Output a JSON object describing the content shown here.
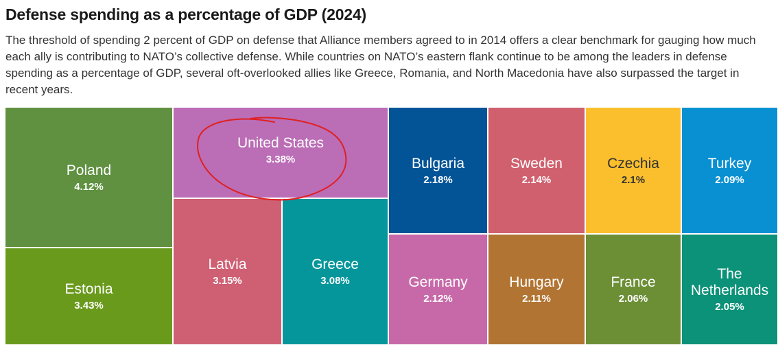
{
  "header": {
    "title": "Defense spending as a percentage of GDP (2024)",
    "subtitle": "The threshold of spending 2 percent of GDP on defense that Alliance members agreed to in 2014 offers a clear benchmark for gauging how much each ally is contributing to NATO’s collective defense. While countries on NATO’s eastern flank continue to be among the leaders in defense spending as a percentage of GDP, several oft-overlooked allies like Greece, Romania, and North Macedonia have also surpassed the target in recent years."
  },
  "chart_data": {
    "type": "treemap",
    "title": "Defense spending as a percentage of GDP (2024)",
    "unit": "percent of GDP",
    "items": [
      {
        "name": "Poland",
        "value": 4.12,
        "label": "4.12%",
        "color": "#5f9140"
      },
      {
        "name": "Estonia",
        "value": 3.43,
        "label": "3.43%",
        "color": "#6a9a1c"
      },
      {
        "name": "United States",
        "value": 3.38,
        "label": "3.38%",
        "color": "#bb6db6"
      },
      {
        "name": "Latvia",
        "value": 3.15,
        "label": "3.15%",
        "color": "#cf5f73"
      },
      {
        "name": "Greece",
        "value": 3.08,
        "label": "3.08%",
        "color": "#05969b"
      },
      {
        "name": "Bulgaria",
        "value": 2.18,
        "label": "2.18%",
        "color": "#035497"
      },
      {
        "name": "Sweden",
        "value": 2.14,
        "label": "2.14%",
        "color": "#d0606e"
      },
      {
        "name": "Czechia",
        "value": 2.1,
        "label": "2.1%",
        "color": "#fbbf2d",
        "text_color": "#333333"
      },
      {
        "name": "Turkey",
        "value": 2.09,
        "label": "2.09%",
        "color": "#0890d3"
      },
      {
        "name": "Germany",
        "value": 2.12,
        "label": "2.12%",
        "color": "#c769a8"
      },
      {
        "name": "Hungary",
        "value": 2.11,
        "label": "2.11%",
        "color": "#b27432"
      },
      {
        "name": "France",
        "value": 2.06,
        "label": "2.06%",
        "color": "#6c8f36"
      },
      {
        "name": "The Netherlands",
        "value": 2.05,
        "label": "2.05%",
        "color": "#0b9278"
      }
    ],
    "annotation": "red hand-drawn circle around United States"
  }
}
